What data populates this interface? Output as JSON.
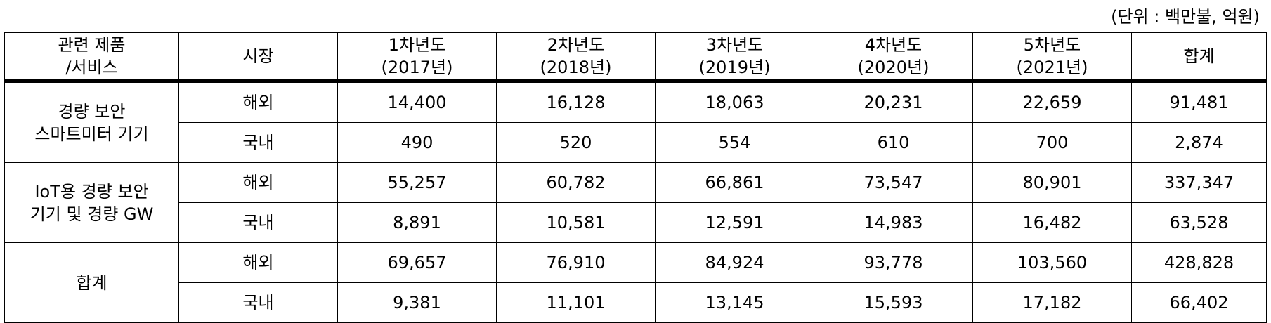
{
  "unit_note": "(단위 : 백만불, 억원)",
  "header": {
    "product": [
      "관련 제품",
      "/서비스"
    ],
    "market": "시장",
    "years": [
      [
        "1차년도",
        "(2017년)"
      ],
      [
        "2차년도",
        "(2018년)"
      ],
      [
        "3차년도",
        "(2019년)"
      ],
      [
        "4차년도",
        "(2020년)"
      ],
      [
        "5차년도",
        "(2021년)"
      ]
    ],
    "total": "합계"
  },
  "groups": [
    {
      "name": [
        "경량 보안",
        "스마트미터 기기"
      ],
      "rows": [
        {
          "market": "해외",
          "values": [
            "14,400",
            "16,128",
            "18,063",
            "20,231",
            "22,659"
          ],
          "total": "91,481"
        },
        {
          "market": "국내",
          "values": [
            "490",
            "520",
            "554",
            "610",
            "700"
          ],
          "total": "2,874"
        }
      ]
    },
    {
      "name": [
        "IoT용 경량 보안",
        "기기 및 경량 GW"
      ],
      "rows": [
        {
          "market": "해외",
          "values": [
            "55,257",
            "60,782",
            "66,861",
            "73,547",
            "80,901"
          ],
          "total": "337,347"
        },
        {
          "market": "국내",
          "values": [
            "8,891",
            "10,581",
            "12,591",
            "14,983",
            "16,482"
          ],
          "total": "63,528"
        }
      ]
    },
    {
      "name": [
        "합계"
      ],
      "rows": [
        {
          "market": "해외",
          "values": [
            "69,657",
            "76,910",
            "84,924",
            "93,778",
            "103,560"
          ],
          "total": "428,828"
        },
        {
          "market": "국내",
          "values": [
            "9,381",
            "11,101",
            "13,145",
            "15,593",
            "17,182"
          ],
          "total": "66,402"
        }
      ]
    }
  ]
}
